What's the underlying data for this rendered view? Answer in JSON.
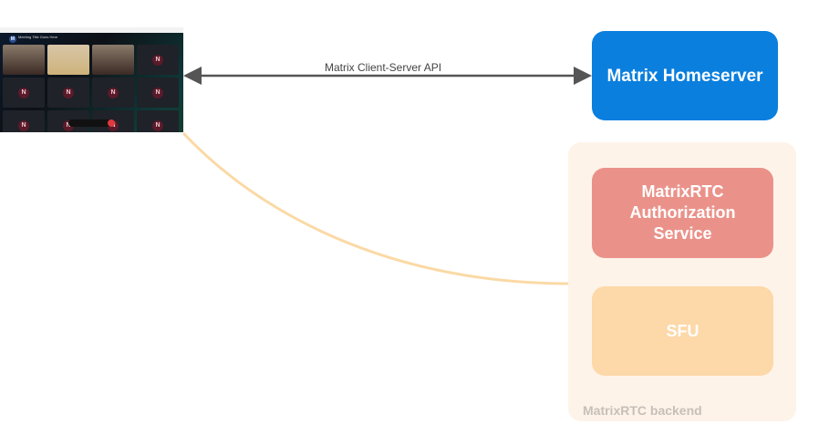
{
  "client_screenshot": {
    "meeting_title": "Meeting Title Goes Here",
    "avatar_letter": "N",
    "room_avatar_letter": "M"
  },
  "connection": {
    "label": "Matrix Client-Server API",
    "color": "#555555"
  },
  "homeserver": {
    "label": "Matrix Homeserver",
    "color": "#0A7FDE"
  },
  "backend": {
    "label": "MatrixRTC backend",
    "color": "#FEF3E9",
    "auth_service": {
      "label_lines": [
        "MatrixRTC",
        "Authorization",
        "Service"
      ],
      "color": "#EA928A"
    },
    "sfu": {
      "label": "SFU",
      "color": "#FDD8A8"
    }
  },
  "link_color": "#FBD9A5"
}
